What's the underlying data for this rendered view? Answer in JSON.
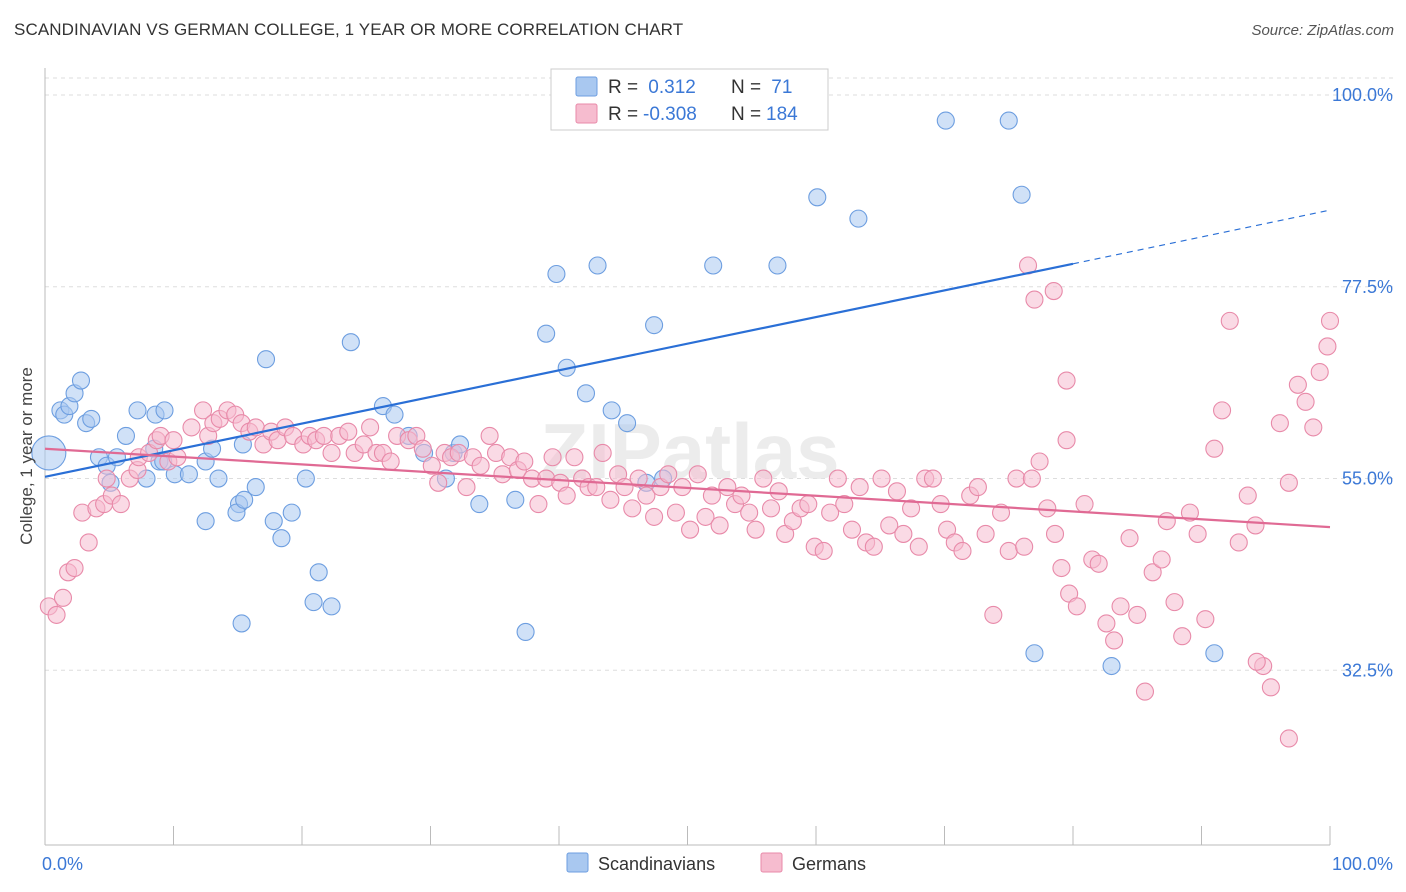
{
  "title": "SCANDINAVIAN VS GERMAN COLLEGE, 1 YEAR OR MORE CORRELATION CHART",
  "source": "Source: ZipAtlas.com",
  "watermark": "ZIPatlas",
  "colors": {
    "blue_fill": "#a9c8f0",
    "blue_stroke": "#6d9ee0",
    "blue_line": "#2a6fd6",
    "pink_fill": "#f6bccf",
    "pink_stroke": "#e88aa9",
    "pink_line": "#e06a94",
    "tick_label": "#3b78d6",
    "grid": "#dddddd"
  },
  "legend": {
    "rows": [
      {
        "r_label": "R =",
        "r_value": " 0.312",
        "n_label": "N =",
        "n_value": " 71",
        "series": "blue"
      },
      {
        "r_label": "R =",
        "r_value": "-0.308",
        "n_label": "N =",
        "n_value": "184",
        "series": "pink"
      }
    ]
  },
  "bottom_legend": [
    "Scandinavians",
    "Germans"
  ],
  "chart_data": {
    "type": "scatter",
    "xlabel": "",
    "ylabel": "College, 1 year or more",
    "xlim": [
      0,
      100
    ],
    "ylim": [
      12,
      102
    ],
    "x_tick_labels": [
      {
        "v": 0,
        "label": "0.0%"
      },
      {
        "v": 100,
        "label": "100.0%"
      }
    ],
    "y_tick_labels": [
      {
        "v": 100,
        "label": "100.0%"
      },
      {
        "v": 77.5,
        "label": "77.5%"
      },
      {
        "v": 55,
        "label": "55.0%"
      },
      {
        "v": 32.5,
        "label": "32.5%"
      }
    ],
    "series": [
      {
        "name": "Scandinavians",
        "color": "blue",
        "regression": {
          "x0": 0,
          "y0": 55.2,
          "x1": 80,
          "y1": 80.2,
          "dash_to_x": 100,
          "dash_to_y": 86.5
        },
        "points": [
          [
            0.3,
            58
          ],
          [
            1.2,
            63
          ],
          [
            1.5,
            62.5
          ],
          [
            1.9,
            63.5
          ],
          [
            2.3,
            65
          ],
          [
            2.8,
            66.5
          ],
          [
            3.2,
            61.5
          ],
          [
            3.6,
            62
          ],
          [
            4.2,
            57.5
          ],
          [
            4.8,
            56.5
          ],
          [
            5.6,
            57.5
          ],
          [
            6.3,
            60
          ],
          [
            5.1,
            54.5
          ],
          [
            7.2,
            63
          ],
          [
            8.6,
            62.5
          ],
          [
            9.3,
            63
          ],
          [
            7.9,
            55
          ],
          [
            8.5,
            58.5
          ],
          [
            8.9,
            57
          ],
          [
            10.1,
            55.5
          ],
          [
            9.2,
            57
          ],
          [
            11.2,
            55.5
          ],
          [
            12.5,
            57
          ],
          [
            13,
            58.5
          ],
          [
            12.5,
            50
          ],
          [
            13.5,
            55
          ],
          [
            15.1,
            52
          ],
          [
            14.9,
            51
          ],
          [
            15.5,
            52.5
          ],
          [
            15.4,
            59
          ],
          [
            17.8,
            50
          ],
          [
            15.3,
            38
          ],
          [
            16.4,
            54
          ],
          [
            18.4,
            48
          ],
          [
            17.2,
            69
          ],
          [
            19.2,
            51
          ],
          [
            20.3,
            55
          ],
          [
            20.9,
            40.5
          ],
          [
            21.3,
            44
          ],
          [
            22.3,
            40
          ],
          [
            23.8,
            71
          ],
          [
            26.3,
            63.5
          ],
          [
            28.3,
            60
          ],
          [
            27.2,
            62.5
          ],
          [
            29.5,
            58
          ],
          [
            31.2,
            55
          ],
          [
            31.8,
            58
          ],
          [
            32.3,
            59
          ],
          [
            33.8,
            52
          ],
          [
            36.6,
            52.5
          ],
          [
            39,
            72
          ],
          [
            40.6,
            68
          ],
          [
            42.1,
            65
          ],
          [
            44.1,
            63
          ],
          [
            46.8,
            54.5
          ],
          [
            45.3,
            61.5
          ],
          [
            47.4,
            73
          ],
          [
            48.1,
            55
          ],
          [
            37.4,
            37
          ],
          [
            39.8,
            79
          ],
          [
            43,
            80
          ],
          [
            52,
            80
          ],
          [
            57,
            80
          ],
          [
            60.1,
            88
          ],
          [
            63.3,
            85.5
          ],
          [
            70.1,
            97
          ],
          [
            75,
            97
          ],
          [
            76,
            88.3
          ],
          [
            77,
            34.5
          ],
          [
            83,
            33
          ],
          [
            91,
            34.5
          ]
        ]
      },
      {
        "name": "Germans",
        "color": "pink",
        "regression": {
          "x0": 0,
          "y0": 58.5,
          "x1": 100,
          "y1": 49.3
        },
        "points": [
          [
            0.3,
            40
          ],
          [
            0.9,
            39
          ],
          [
            1.4,
            41
          ],
          [
            1.8,
            44
          ],
          [
            2.3,
            44.5
          ],
          [
            2.9,
            51
          ],
          [
            3.4,
            47.5
          ],
          [
            4,
            51.5
          ],
          [
            4.6,
            52
          ],
          [
            4.8,
            55
          ],
          [
            5.2,
            53
          ],
          [
            5.9,
            52
          ],
          [
            6.6,
            55
          ],
          [
            7.2,
            56
          ],
          [
            7.3,
            57.5
          ],
          [
            8.1,
            58
          ],
          [
            8.7,
            59.5
          ],
          [
            9,
            60
          ],
          [
            9.6,
            57
          ],
          [
            10,
            59.5
          ],
          [
            10.3,
            57.5
          ],
          [
            11.4,
            61
          ],
          [
            12.3,
            63
          ],
          [
            12.7,
            60
          ],
          [
            13.1,
            61.5
          ],
          [
            13.6,
            62
          ],
          [
            14.2,
            63
          ],
          [
            14.8,
            62.5
          ],
          [
            15.3,
            61.5
          ],
          [
            15.9,
            60.5
          ],
          [
            16.4,
            61
          ],
          [
            17,
            59
          ],
          [
            17.6,
            60.5
          ],
          [
            18.1,
            59.5
          ],
          [
            18.7,
            61
          ],
          [
            19.3,
            60
          ],
          [
            20.1,
            59
          ],
          [
            20.6,
            60
          ],
          [
            21.1,
            59.5
          ],
          [
            21.7,
            60
          ],
          [
            22.3,
            58
          ],
          [
            22.9,
            60
          ],
          [
            23.6,
            60.5
          ],
          [
            24.1,
            58
          ],
          [
            24.8,
            59
          ],
          [
            25.3,
            61
          ],
          [
            25.8,
            58
          ],
          [
            26.3,
            58
          ],
          [
            26.9,
            57
          ],
          [
            27.4,
            60
          ],
          [
            28.3,
            59.5
          ],
          [
            28.9,
            60
          ],
          [
            29.4,
            58.5
          ],
          [
            30.1,
            56.5
          ],
          [
            30.6,
            54.5
          ],
          [
            31.1,
            58
          ],
          [
            31.6,
            57.5
          ],
          [
            32.2,
            58
          ],
          [
            32.8,
            54
          ],
          [
            33.3,
            57.5
          ],
          [
            33.9,
            56.5
          ],
          [
            34.6,
            60
          ],
          [
            35.1,
            58
          ],
          [
            35.6,
            55.5
          ],
          [
            36.2,
            57.5
          ],
          [
            36.8,
            56
          ],
          [
            37.3,
            57
          ],
          [
            37.9,
            55
          ],
          [
            38.4,
            52
          ],
          [
            39,
            55
          ],
          [
            39.5,
            57.5
          ],
          [
            40.1,
            54.5
          ],
          [
            40.6,
            53
          ],
          [
            41.2,
            57.5
          ],
          [
            41.8,
            55
          ],
          [
            42.3,
            54
          ],
          [
            42.9,
            54
          ],
          [
            43.4,
            58
          ],
          [
            44,
            52.5
          ],
          [
            44.6,
            55.5
          ],
          [
            45.1,
            54
          ],
          [
            45.7,
            51.5
          ],
          [
            46.2,
            55
          ],
          [
            46.8,
            53
          ],
          [
            47.4,
            50.5
          ],
          [
            47.9,
            54
          ],
          [
            48.5,
            55.5
          ],
          [
            49.1,
            51
          ],
          [
            49.6,
            54
          ],
          [
            50.2,
            49
          ],
          [
            50.8,
            55.5
          ],
          [
            51.4,
            50.5
          ],
          [
            51.9,
            53
          ],
          [
            52.5,
            49.5
          ],
          [
            53.1,
            54
          ],
          [
            53.7,
            52
          ],
          [
            54.2,
            53
          ],
          [
            54.8,
            51
          ],
          [
            55.3,
            49
          ],
          [
            55.9,
            55
          ],
          [
            56.5,
            51.5
          ],
          [
            57.1,
            53.5
          ],
          [
            57.6,
            48.5
          ],
          [
            58.2,
            50
          ],
          [
            58.8,
            51.5
          ],
          [
            59.4,
            52
          ],
          [
            59.9,
            47
          ],
          [
            60.6,
            46.5
          ],
          [
            61.1,
            51
          ],
          [
            61.7,
            55
          ],
          [
            62.2,
            52
          ],
          [
            62.8,
            49
          ],
          [
            63.4,
            54
          ],
          [
            63.9,
            47.5
          ],
          [
            64.5,
            47
          ],
          [
            65.1,
            55
          ],
          [
            65.7,
            49.5
          ],
          [
            66.3,
            53.5
          ],
          [
            66.8,
            48.5
          ],
          [
            67.4,
            51.5
          ],
          [
            68,
            47
          ],
          [
            68.5,
            55
          ],
          [
            69.1,
            55
          ],
          [
            69.7,
            52
          ],
          [
            70.2,
            49
          ],
          [
            70.8,
            47.5
          ],
          [
            71.4,
            46.5
          ],
          [
            72,
            53
          ],
          [
            72.6,
            54
          ],
          [
            73.2,
            48.5
          ],
          [
            73.8,
            39
          ],
          [
            74.4,
            51
          ],
          [
            75,
            46.5
          ],
          [
            75.6,
            55
          ],
          [
            76.2,
            47
          ],
          [
            76.8,
            55
          ],
          [
            77.4,
            57
          ],
          [
            78,
            51.5
          ],
          [
            78.6,
            48.5
          ],
          [
            79.1,
            44.5
          ],
          [
            79.7,
            41.5
          ],
          [
            80.3,
            40
          ],
          [
            80.9,
            52
          ],
          [
            81.5,
            45.5
          ],
          [
            82,
            45
          ],
          [
            82.6,
            38
          ],
          [
            83.2,
            36
          ],
          [
            83.7,
            40
          ],
          [
            84.4,
            48
          ],
          [
            85,
            39
          ],
          [
            85.6,
            30
          ],
          [
            86.2,
            44
          ],
          [
            86.9,
            45.5
          ],
          [
            87.3,
            50
          ],
          [
            87.9,
            40.5
          ],
          [
            88.5,
            36.5
          ],
          [
            89.1,
            51
          ],
          [
            89.7,
            48.5
          ],
          [
            90.3,
            38.5
          ],
          [
            91,
            58.5
          ],
          [
            91.6,
            63
          ],
          [
            92.2,
            73.5
          ],
          [
            92.9,
            47.5
          ],
          [
            93.6,
            53
          ],
          [
            94.2,
            49.5
          ],
          [
            94.8,
            33
          ],
          [
            95.4,
            30.5
          ],
          [
            96.1,
            61.5
          ],
          [
            96.8,
            54.5
          ],
          [
            97.5,
            66
          ],
          [
            98.1,
            64
          ],
          [
            98.7,
            61
          ],
          [
            99.2,
            67.5
          ],
          [
            99.8,
            70.5
          ],
          [
            100,
            73.5
          ],
          [
            78.5,
            77
          ],
          [
            77,
            76
          ],
          [
            76.5,
            80
          ],
          [
            79.5,
            66.5
          ],
          [
            79.5,
            59.5
          ],
          [
            94.3,
            33.5
          ],
          [
            96.8,
            24.5
          ]
        ]
      }
    ]
  }
}
